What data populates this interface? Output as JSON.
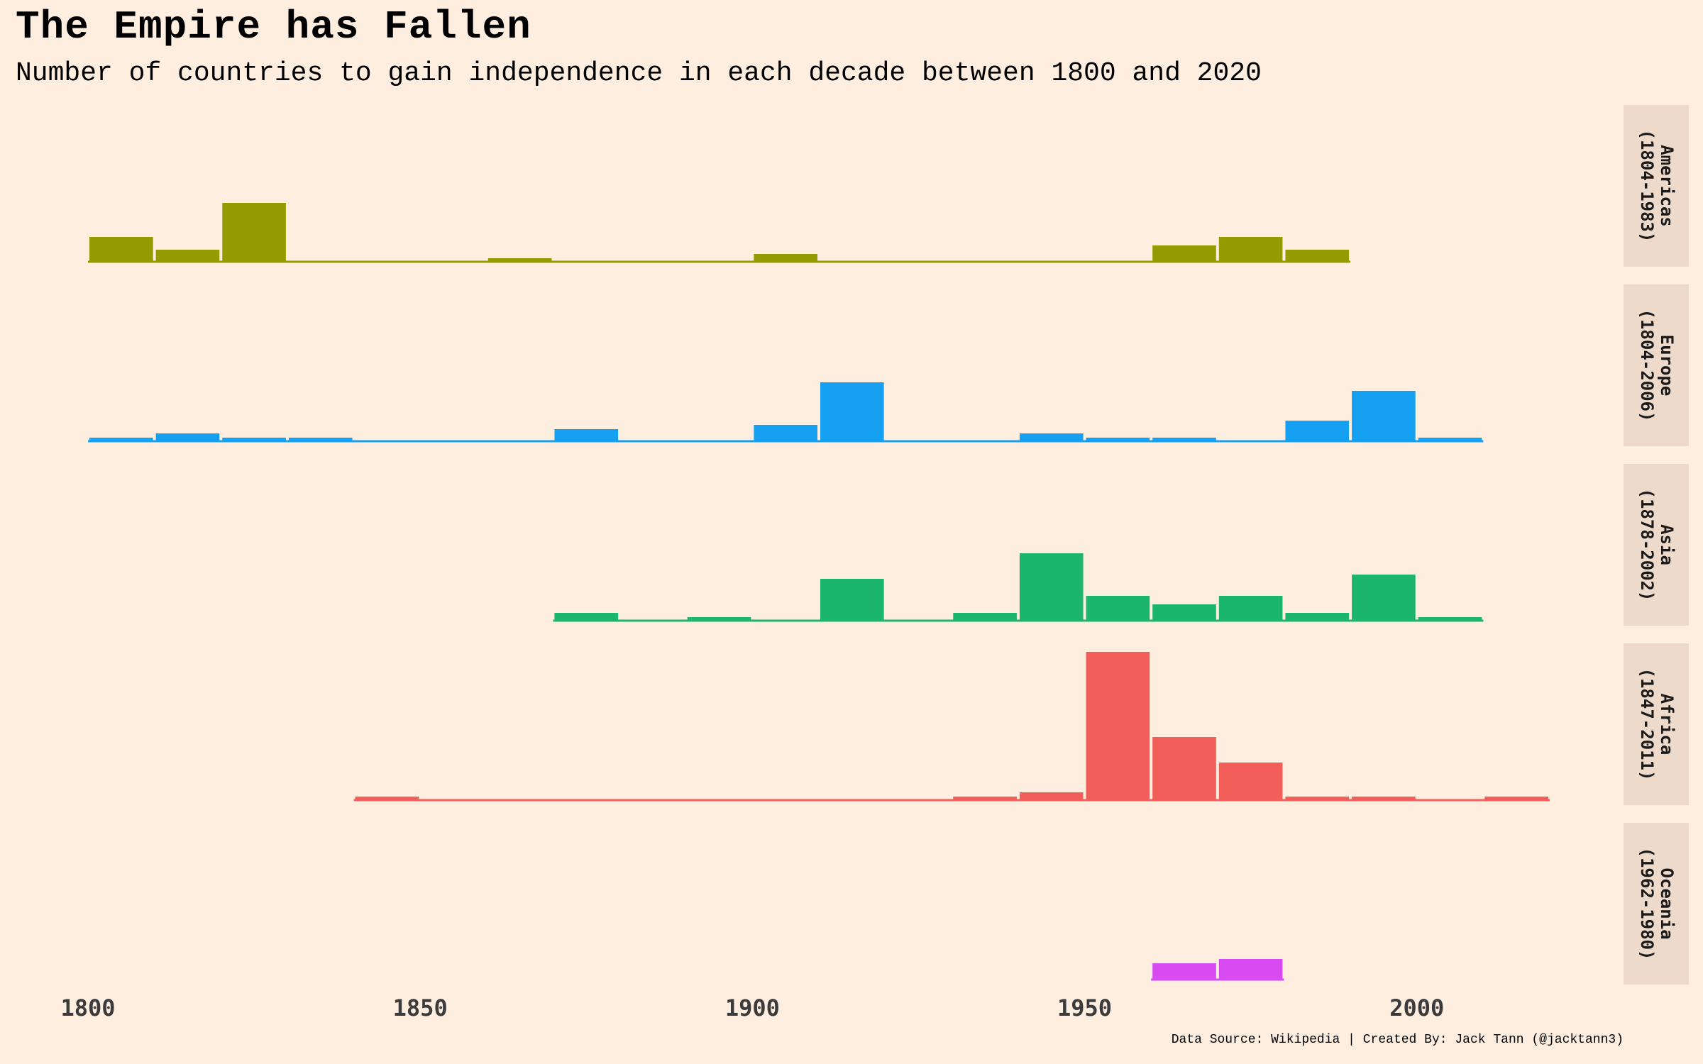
{
  "title": "The Empire has Fallen",
  "subtitle": "Number of countries to gain independence in each decade between 1800 and 2020",
  "caption": "Data Source: Wikipedia | Created By: Jack Tann (@jacktann3)",
  "chart_data": {
    "type": "bar",
    "xlim": [
      1800,
      2020
    ],
    "x_ticks": [
      "1800",
      "1850",
      "1900",
      "1950",
      "2000"
    ],
    "bin_width_years": 10,
    "panel_color": "#eddaca",
    "background_color": "#fdeee0",
    "series": [
      {
        "name": "Americas",
        "range": "(1804-1983)",
        "color": "#949b00",
        "decades": [
          1800,
          1810,
          1820,
          1830,
          1840,
          1850,
          1860,
          1870,
          1880,
          1890,
          1900,
          1910,
          1920,
          1930,
          1940,
          1950,
          1960,
          1970,
          1980
        ],
        "values": [
          6,
          3,
          14,
          0,
          0,
          0,
          1,
          0,
          0,
          0,
          2,
          0,
          0,
          0,
          0,
          0,
          4,
          6,
          3
        ]
      },
      {
        "name": "Europe",
        "range": "(1804-2006)",
        "color": "#16a0f2",
        "decades": [
          1800,
          1810,
          1820,
          1830,
          1840,
          1850,
          1860,
          1870,
          1880,
          1890,
          1900,
          1910,
          1920,
          1930,
          1940,
          1950,
          1960,
          1970,
          1980,
          1990,
          2000
        ],
        "values": [
          1,
          2,
          1,
          1,
          0,
          0,
          0,
          3,
          0,
          0,
          4,
          14,
          0,
          0,
          2,
          1,
          1,
          0,
          5,
          12,
          1
        ]
      },
      {
        "name": "Asia",
        "range": "(1878-2002)",
        "color": "#1bb56b",
        "decades": [
          1870,
          1880,
          1890,
          1900,
          1910,
          1920,
          1930,
          1940,
          1950,
          1960,
          1970,
          1980,
          1990,
          2000
        ],
        "values": [
          2,
          0,
          1,
          0,
          10,
          0,
          2,
          16,
          6,
          4,
          6,
          2,
          11,
          1
        ]
      },
      {
        "name": "Africa",
        "range": "(1847-2011)",
        "color": "#f25e5a",
        "decades": [
          1840,
          1850,
          1860,
          1870,
          1880,
          1890,
          1900,
          1910,
          1920,
          1930,
          1940,
          1950,
          1960,
          1970,
          1980,
          1990,
          2000,
          2010
        ],
        "values": [
          1,
          0,
          0,
          0,
          0,
          0,
          0,
          0,
          0,
          1,
          2,
          35,
          15,
          9,
          1,
          1,
          0,
          1
        ]
      },
      {
        "name": "Oceania",
        "range": "(1962-1980)",
        "color": "#d84bf0",
        "decades": [
          1960,
          1970
        ],
        "values": [
          4,
          5
        ]
      }
    ]
  }
}
